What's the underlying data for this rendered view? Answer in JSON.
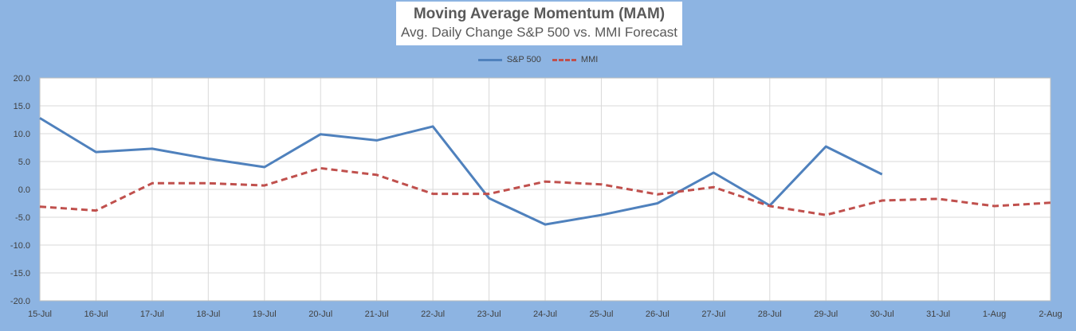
{
  "chart_data": {
    "type": "line",
    "title": "Moving Average Momentum (MAM)",
    "subtitle": "Avg. Daily Change S&P 500 vs. MMI Forecast",
    "categories": [
      "15-Jul",
      "16-Jul",
      "17-Jul",
      "18-Jul",
      "19-Jul",
      "20-Jul",
      "21-Jul",
      "22-Jul",
      "23-Jul",
      "24-Jul",
      "25-Jul",
      "26-Jul",
      "27-Jul",
      "28-Jul",
      "29-Jul",
      "30-Jul",
      "31-Jul",
      "1-Aug",
      "2-Aug"
    ],
    "series": [
      {
        "name": "S&P 500",
        "color": "#4f81bd",
        "style": "solid",
        "values": [
          12.8,
          6.7,
          7.3,
          5.5,
          4.0,
          9.9,
          8.8,
          11.3,
          -1.6,
          -6.3,
          -4.6,
          -2.5,
          3.0,
          -2.9,
          7.7,
          2.7,
          null,
          null,
          null
        ]
      },
      {
        "name": "MMI",
        "color": "#c0504d",
        "style": "dashed",
        "values": [
          -3.1,
          -3.8,
          1.1,
          1.1,
          0.7,
          3.8,
          2.6,
          -0.8,
          -0.8,
          1.4,
          0.9,
          -0.9,
          0.4,
          -3.0,
          -4.6,
          -2.0,
          -1.7,
          -3.0,
          -2.4
        ]
      }
    ],
    "ylim": [
      -20,
      20
    ],
    "yticks": [
      20.0,
      15.0,
      10.0,
      5.0,
      0.0,
      -5.0,
      -10.0,
      -15.0,
      -20.0
    ],
    "xlabel": "",
    "ylabel": "",
    "grid": true,
    "legend_position": "top"
  }
}
